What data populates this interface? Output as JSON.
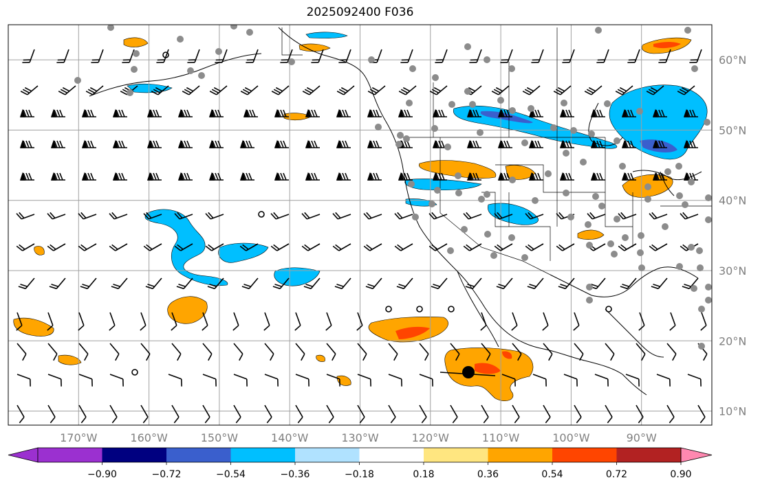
{
  "title": "2025092400 F036",
  "map": {
    "lon_range": [
      -180,
      -80
    ],
    "lat_range": [
      8,
      65
    ],
    "lon_grid": [
      -170,
      -160,
      -150,
      -140,
      -130,
      -120,
      -110,
      -100,
      -90
    ],
    "lat_grid": [
      10,
      20,
      30,
      40,
      50,
      60
    ],
    "lon_labels": [
      "170°W",
      "160°W",
      "150°W",
      "140°W",
      "130°W",
      "120°W",
      "110°W",
      "100°W",
      "90°W"
    ],
    "lat_labels": [
      "10°N",
      "20°N",
      "30°N",
      "40°N",
      "50°N",
      "60°N"
    ],
    "grid_color": "#a0a0a0",
    "label_color": "#7f7f7f"
  },
  "colorbar": {
    "ticks": [
      "−0.90",
      "−0.72",
      "−0.54",
      "−0.36",
      "−0.18",
      "0.18",
      "0.36",
      "0.54",
      "0.72",
      "0.90"
    ],
    "under_color": "#9b30d0",
    "over_color": "#ff88b0",
    "colors": [
      "#000080",
      "#3a5fcd",
      "#00bfff",
      "#b0e2ff",
      "#ffffff",
      "#ffe680",
      "#ffa500",
      "#ff4500",
      "#b22222"
    ]
  },
  "markers": {
    "center_point": {
      "lon": -114.5,
      "lat": 15.3
    }
  }
}
